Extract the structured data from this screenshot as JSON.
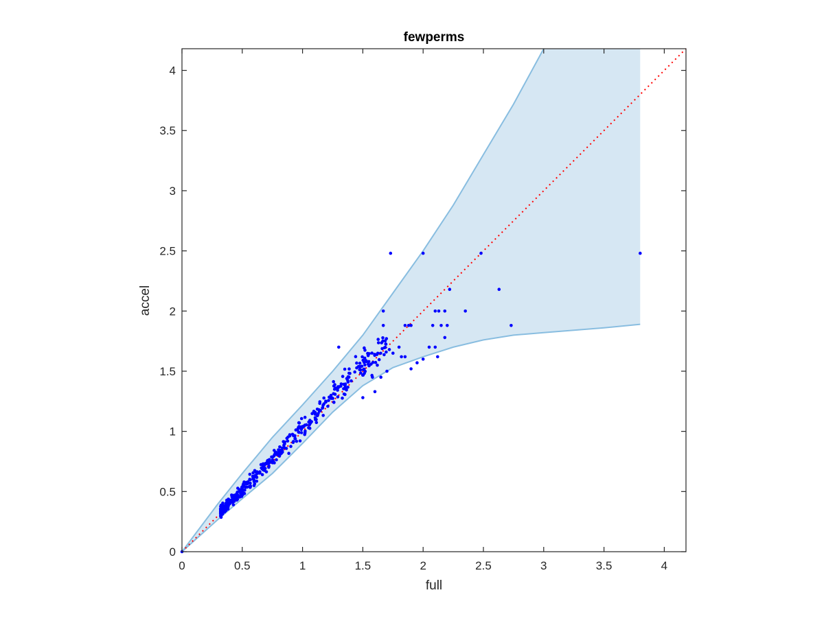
{
  "chart_data": {
    "type": "scatter",
    "title": "fewperms",
    "xlabel": "full",
    "ylabel": "accel",
    "xlim": [
      0,
      4.18
    ],
    "ylim": [
      0,
      4.18
    ],
    "xticks": [
      "0",
      "0.5",
      "1",
      "1.5",
      "2",
      "2.5",
      "3",
      "3.5",
      "4"
    ],
    "yticks": [
      "0",
      "0.5",
      "1",
      "1.5",
      "2",
      "2.5",
      "3",
      "3.5",
      "4"
    ],
    "grid": false,
    "legend": "none",
    "colors": {
      "points": "#0000ff",
      "diagonal": "#ff0000",
      "band_fill": "#d6e7f3",
      "band_edge": "#88bde0",
      "axes": "#262626"
    },
    "diagonal": {
      "style": "dotted",
      "from": [
        0,
        0
      ],
      "to": [
        4.18,
        4.18
      ]
    },
    "band": {
      "upper": [
        [
          0,
          0
        ],
        [
          0.3,
          0.4
        ],
        [
          0.5,
          0.65
        ],
        [
          0.75,
          0.95
        ],
        [
          1.0,
          1.22
        ],
        [
          1.25,
          1.5
        ],
        [
          1.5,
          1.8
        ],
        [
          1.75,
          2.15
        ],
        [
          2.0,
          2.5
        ],
        [
          2.25,
          2.88
        ],
        [
          2.5,
          3.3
        ],
        [
          2.75,
          3.72
        ],
        [
          3.0,
          4.18
        ],
        [
          3.8,
          4.18
        ]
      ],
      "lower": [
        [
          0,
          0
        ],
        [
          0.3,
          0.27
        ],
        [
          0.5,
          0.44
        ],
        [
          0.75,
          0.65
        ],
        [
          1.0,
          0.9
        ],
        [
          1.25,
          1.16
        ],
        [
          1.5,
          1.38
        ],
        [
          1.75,
          1.53
        ],
        [
          2.0,
          1.62
        ],
        [
          2.25,
          1.7
        ],
        [
          2.5,
          1.76
        ],
        [
          2.75,
          1.8
        ],
        [
          3.0,
          1.82
        ],
        [
          3.5,
          1.86
        ],
        [
          3.8,
          1.89
        ]
      ]
    },
    "highlight_points": [
      [
        0,
        0
      ],
      [
        1.73,
        2.48
      ],
      [
        2.0,
        2.48
      ],
      [
        2.48,
        2.48
      ],
      [
        3.8,
        2.48
      ],
      [
        2.63,
        2.18
      ],
      [
        2.22,
        2.18
      ],
      [
        2.73,
        1.88
      ],
      [
        1.67,
        2.0
      ],
      [
        1.67,
        1.88
      ],
      [
        2.1,
        2.0
      ],
      [
        2.13,
        2.0
      ],
      [
        2.18,
        2.0
      ],
      [
        2.35,
        2.0
      ],
      [
        2.08,
        1.88
      ],
      [
        2.15,
        1.88
      ],
      [
        2.2,
        1.88
      ],
      [
        2.18,
        1.78
      ],
      [
        1.85,
        1.88
      ],
      [
        1.88,
        1.88
      ],
      [
        1.9,
        1.88
      ],
      [
        1.3,
        1.7
      ],
      [
        2.05,
        1.7
      ],
      [
        2.1,
        1.7
      ],
      [
        2.0,
        1.6
      ],
      [
        2.12,
        1.62
      ],
      [
        1.9,
        1.52
      ],
      [
        1.95,
        1.57
      ],
      [
        1.5,
        1.28
      ],
      [
        1.6,
        1.33
      ],
      [
        1.62,
        1.55
      ],
      [
        1.65,
        1.45
      ],
      [
        1.7,
        1.5
      ],
      [
        1.72,
        1.68
      ],
      [
        1.75,
        1.65
      ],
      [
        1.82,
        1.62
      ],
      [
        1.85,
        1.62
      ],
      [
        1.8,
        1.7
      ],
      [
        1.58,
        1.45
      ],
      [
        1.55,
        1.58
      ]
    ],
    "cluster": {
      "count": 430,
      "x_range": [
        0.32,
        1.7
      ],
      "relation": "accel ≈ full",
      "note": "dense cloud of points along the diagonal"
    }
  }
}
